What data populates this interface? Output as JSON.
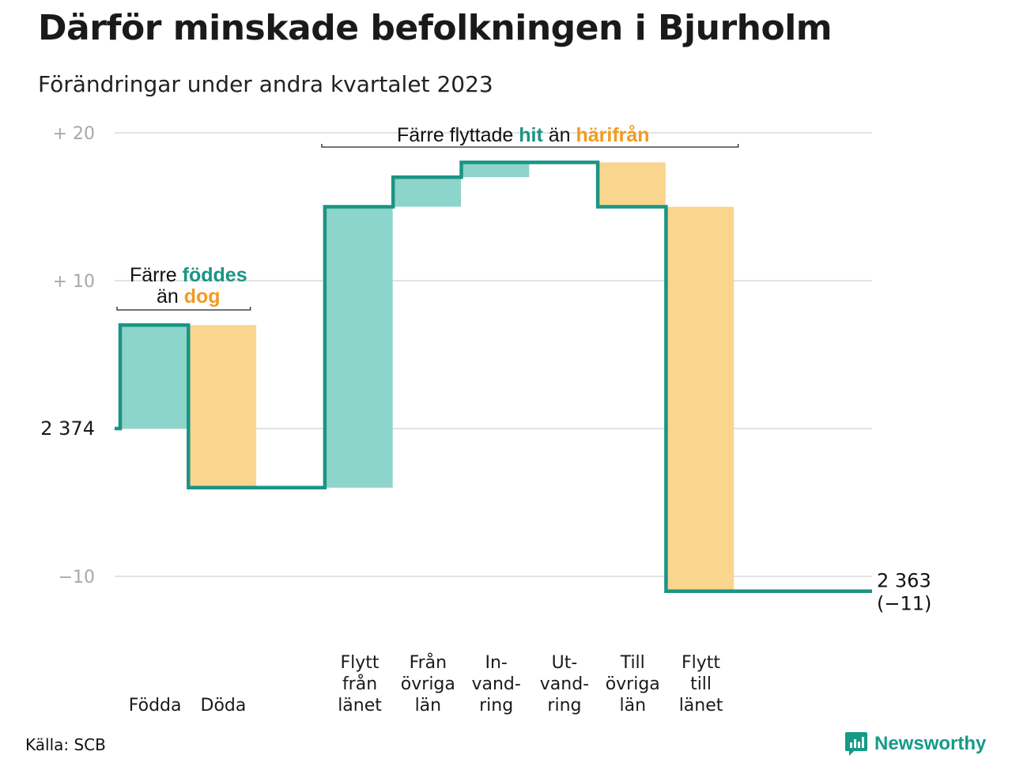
{
  "title": "Därför minskade befolkningen i Bjurholm",
  "subtitle": "Förändringar under andra kvartalet 2023",
  "source": "Källa: SCB",
  "brand": "Newsworthy",
  "colors": {
    "increase": "#8dd4cb",
    "decrease": "#f9d58e",
    "line": "#1b9484",
    "hit": "#1b9484",
    "harifran": "#f39a1f",
    "grid": "#e3e3e3"
  },
  "chart_data": {
    "type": "bar",
    "subtype": "waterfall",
    "baseline_value": 2374,
    "baseline_label": "2  374",
    "ylim": [
      -11,
      20
    ],
    "yticks": [
      {
        "value": 20,
        "label": "+  20"
      },
      {
        "value": 10,
        "label": "+  10"
      },
      {
        "value": -10,
        "label": "−10"
      }
    ],
    "categories": [
      {
        "key": "fodda",
        "lines": [
          "Födda"
        ],
        "delta": 7,
        "kind": "in"
      },
      {
        "key": "doda",
        "lines": [
          "Döda"
        ],
        "delta": -11,
        "kind": "out"
      },
      {
        "key": "gap",
        "lines": [],
        "delta": 0,
        "kind": "none"
      },
      {
        "key": "flytt_fran_lanet",
        "lines": [
          "Flytt",
          "från",
          "länet"
        ],
        "delta": 19,
        "kind": "in"
      },
      {
        "key": "fran_ovriga_lan",
        "lines": [
          "Från",
          "övriga",
          "län"
        ],
        "delta": 2,
        "kind": "in"
      },
      {
        "key": "invandring",
        "lines": [
          "In-",
          "vand-",
          "ring"
        ],
        "delta": 1,
        "kind": "in"
      },
      {
        "key": "utvandring",
        "lines": [
          "Ut-",
          "vand-",
          "ring"
        ],
        "delta": 0,
        "kind": "out"
      },
      {
        "key": "till_ovriga_lan",
        "lines": [
          "Till",
          "övriga",
          "län"
        ],
        "delta": -3,
        "kind": "out"
      },
      {
        "key": "flytt_till_lanet",
        "lines": [
          "Flytt",
          "till",
          "länet"
        ],
        "delta": -26,
        "kind": "out"
      },
      {
        "key": "end",
        "lines": [],
        "delta": 0,
        "kind": "none"
      }
    ],
    "end_value_label": "2 363",
    "end_change_label": "(−11)",
    "annotations": [
      {
        "key": "birth",
        "parts": [
          {
            "line": 1,
            "text": "Färre ",
            "style": "plain"
          },
          {
            "line": 1,
            "text": "föddes",
            "style": "hit"
          },
          {
            "line": 2,
            "text": "än ",
            "style": "plain"
          },
          {
            "line": 2,
            "text": "dog",
            "style": "harifran"
          }
        ]
      },
      {
        "key": "moves",
        "parts": [
          {
            "line": 1,
            "text": "Färre flyttade ",
            "style": "plain"
          },
          {
            "line": 1,
            "text": "hit",
            "style": "hit"
          },
          {
            "line": 1,
            "text": " än ",
            "style": "plain"
          },
          {
            "line": 1,
            "text": "härifrån",
            "style": "harifran"
          }
        ]
      }
    ]
  }
}
